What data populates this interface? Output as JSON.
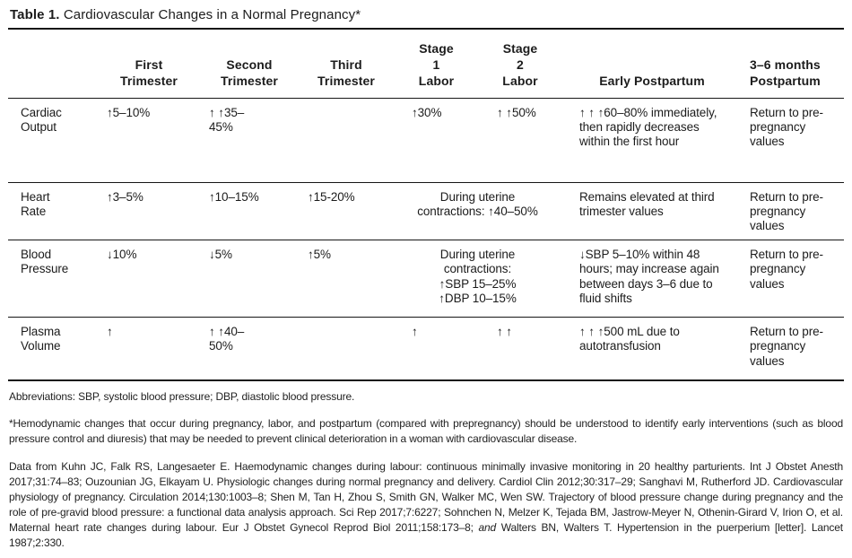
{
  "title": {
    "prefix": "Table 1.",
    "text": " Cardiovascular Changes in a Normal Pregnancy*"
  },
  "table": {
    "headers": {
      "row_label": "",
      "first_trimester": "First\nTrimester",
      "second_trimester": "Second\nTrimester",
      "third_trimester": "Third\nTrimester",
      "stage1_labor": "Stage\n1\nLabor",
      "stage2_labor": "Stage\n2\nLabor",
      "early_postpartum": "Early Postpartum",
      "postpartum_3_6": "3–6 months\nPostpartum"
    },
    "rows": [
      {
        "label": "Cardiac Output",
        "first_trimester": "↑5–10%",
        "second_trimester": "↑ ↑35–\n45%",
        "third_trimester": "",
        "stage1_labor": "↑30%",
        "stage2_labor": "↑ ↑50%",
        "early_postpartum": "↑ ↑ ↑60–80% immediately, then rapidly decreases within the first hour",
        "postpartum_3_6": "Return to pre-pregnancy values"
      },
      {
        "label": "Heart Rate",
        "first_trimester": "↑3–5%",
        "second_trimester": "↑10–15%",
        "third_trimester": "↑15-20%",
        "labor": "During uterine\ncontractions: ↑40–50%",
        "early_postpartum": "Remains elevated at third trimester values",
        "postpartum_3_6": "Return to pre-pregnancy values"
      },
      {
        "label": "Blood Pressure",
        "first_trimester": "↓10%",
        "second_trimester": "↓5%",
        "third_trimester": "↑5%",
        "labor": "During uterine\ncontractions:\n↑SBP 15–25%\n↑DBP 10–15%",
        "early_postpartum": "↓SBP 5–10% within 48 hours; may increase again between days 3–6 due to fluid shifts",
        "postpartum_3_6": "Return to pre-pregnancy values"
      },
      {
        "label": "Plasma Volume",
        "first_trimester": "↑",
        "second_trimester": "↑ ↑40–\n50%",
        "third_trimester": "",
        "stage1_labor": "↑",
        "stage2_labor": "↑ ↑",
        "early_postpartum": "↑ ↑ ↑500 mL due to autotransfusion",
        "postpartum_3_6": "Return to pre-pregnancy values"
      }
    ]
  },
  "footnotes": {
    "abbreviations": "Abbreviations: SBP, systolic blood pressure; DBP, diastolic blood pressure.",
    "asterisk": "*Hemodynamic changes that occur during pregnancy, labor, and postpartum (compared with prepregnancy) should be understood to identify early interventions (such as blood pressure control and diuresis) that may be needed to prevent clinical deterioration in a woman with cardiovascular disease.",
    "data_from_part1": "Data from Kuhn JC, Falk RS, Langesaeter E. Haemodynamic changes during labour: continuous minimally invasive monitoring in 20 healthy parturients. Int J Obstet Anesth 2017;31:74–83; Ouzounian JG, Elkayam U. Physiologic changes during normal pregnancy and delivery. Cardiol Clin 2012;30:317–29; Sanghavi M, Rutherford JD. Cardiovascular physiology of pregnancy. Circulation 2014;130:1003–8; Shen M, Tan H, Zhou S, Smith GN, Walker MC, Wen SW. Trajectory of blood pressure change during pregnancy and the role of pre-gravid blood pressure: a functional data analysis approach. Sci Rep 2017;7:6227; Sohnchen N, Melzer K, Tejada BM, Jastrow-Meyer N, Othenin-Girard V, Irion O, et al. Maternal heart rate changes during labour. Eur J Obstet Gynecol Reprod Biol 2011;158:173–8; ",
    "data_from_and": "and",
    "data_from_part2": " Walters BN, Walters T. Hypertension in the puerperium [letter]. Lancet 1987;2:330."
  }
}
